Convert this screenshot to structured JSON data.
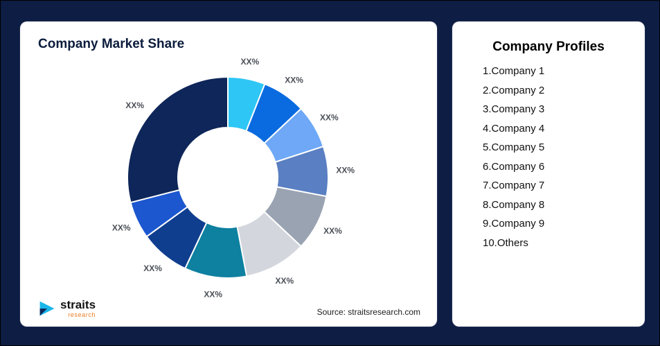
{
  "page": {
    "background_color": "#0e1d44"
  },
  "market_share_card": {
    "title": "Company Market Share",
    "source": "Source: straitsresearch.com"
  },
  "logo": {
    "wordmark": "straits",
    "subtext": "research",
    "icon": "straits-arrow-icon",
    "icon_colors": [
      "#19b6e9",
      "#0d2a5c"
    ]
  },
  "profiles_card": {
    "title": "Company Profiles",
    "items": [
      "1.Company 1",
      "2.Company 2",
      "3.Company 3",
      "4.Company 4",
      "5.Company 5",
      "6.Company 6",
      "7.Company 7",
      "8.Company 8",
      "9.Company 9",
      "10.Others"
    ]
  },
  "chart_data": {
    "type": "pie",
    "subtype": "donut",
    "title": "Company Market Share",
    "values_are_placeholders": true,
    "value_note": "All slice labels display the placeholder XX%; numeric values below are estimated from arc angles",
    "legend_position": "right-panel (Company Profiles list)",
    "segments": [
      {
        "name": "Company 1",
        "label": "XX%",
        "value": 6,
        "color": "#2ec6f5"
      },
      {
        "name": "Company 2",
        "label": "XX%",
        "value": 7,
        "color": "#0a6be0"
      },
      {
        "name": "Company 3",
        "label": "XX%",
        "value": 7,
        "color": "#6ea8f7"
      },
      {
        "name": "Company 4",
        "label": "XX%",
        "value": 8,
        "color": "#5a7fc2"
      },
      {
        "name": "Company 5",
        "label": "XX%",
        "value": 9,
        "color": "#9aa3b2"
      },
      {
        "name": "Company 6",
        "label": "XX%",
        "value": 10,
        "color": "#d3d7dd"
      },
      {
        "name": "Company 7",
        "label": "XX%",
        "value": 10,
        "color": "#0e80a0"
      },
      {
        "name": "Company 8",
        "label": "XX%",
        "value": 8,
        "color": "#0f3e8f"
      },
      {
        "name": "Company 9",
        "label": "XX%",
        "value": 6,
        "color": "#1c57cf"
      },
      {
        "name": "Others",
        "label": "XX%",
        "value": 29,
        "color": "#0e2659"
      }
    ]
  }
}
